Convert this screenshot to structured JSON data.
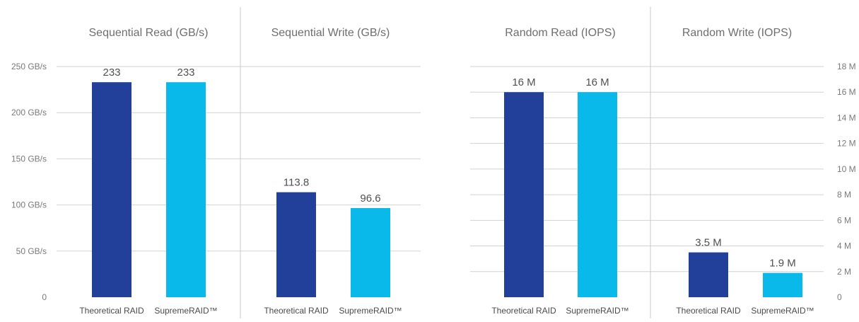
{
  "colors": {
    "theoretical": "#22409A",
    "supreme": "#08B9EA"
  },
  "chart_data": [
    {
      "type": "bar",
      "title": "Sequential Read (GB/s)",
      "categories": [
        "Theoretical RAID",
        "SupremeRAID™"
      ],
      "values": [
        233,
        233
      ],
      "value_labels": [
        "233",
        "233"
      ],
      "ylim": [
        0,
        250
      ],
      "yticks": [
        0,
        50,
        100,
        150,
        200,
        250
      ],
      "ytick_labels": [
        "0",
        "50 GB/s",
        "100 GB/s",
        "150 GB/s",
        "200 GB/s",
        "250 GB/s"
      ],
      "axis_side": "left",
      "grid": true
    },
    {
      "type": "bar",
      "title": "Sequential Write (GB/s)",
      "categories": [
        "Theoretical RAID",
        "SupremeRAID™"
      ],
      "values": [
        113.8,
        96.6
      ],
      "value_labels": [
        "113.8",
        "96.6"
      ],
      "ylim": [
        0,
        250
      ],
      "grid": true
    },
    {
      "type": "bar",
      "title": "Random Read (IOPS)",
      "categories": [
        "Theoretical RAID",
        "SupremeRAID™"
      ],
      "values": [
        16,
        16
      ],
      "value_labels": [
        "16 M",
        "16 M"
      ],
      "ylim": [
        0,
        18
      ],
      "grid": true
    },
    {
      "type": "bar",
      "title": "Random Write (IOPS)",
      "categories": [
        "Theoretical RAID",
        "SupremeRAID™"
      ],
      "values": [
        3.5,
        1.9
      ],
      "value_labels": [
        "3.5 M",
        "1.9 M"
      ],
      "ylim": [
        0,
        18
      ],
      "yticks": [
        0,
        2,
        4,
        6,
        8,
        10,
        12,
        14,
        16,
        18
      ],
      "ytick_labels": [
        "0",
        "2 M",
        "4 M",
        "6 M",
        "8 M",
        "10 M",
        "12 M",
        "14 M",
        "16 M",
        "18 M"
      ],
      "axis_side": "right",
      "grid": true
    }
  ]
}
